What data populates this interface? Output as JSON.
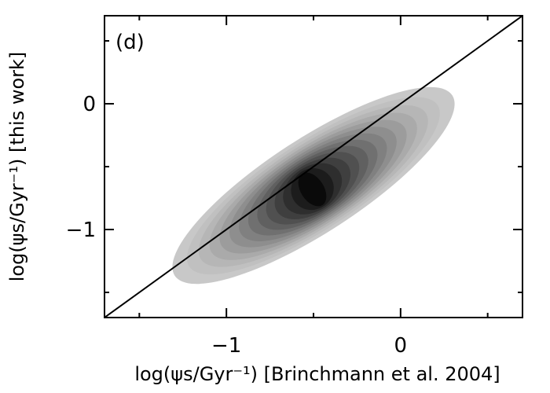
{
  "chart_data": {
    "type": "heatmap",
    "panel_label": "(d)",
    "xlabel": "log(ψs/Gyr⁻¹) [Brinchmann et al. 2004]",
    "ylabel": "log(ψs/Gyr⁻¹) [this work]",
    "xlim": [
      -1.7,
      0.7
    ],
    "ylim": [
      -1.7,
      0.7
    ],
    "x_ticks": [
      -1,
      0
    ],
    "x_tick_labels": [
      "−1",
      "0"
    ],
    "y_ticks": [
      -1,
      0
    ],
    "y_tick_labels": [
      "−1",
      "0"
    ],
    "reference_line": {
      "slope": 1,
      "intercept": 0
    },
    "density": {
      "center": [
        -0.5,
        -0.65
      ],
      "major_axis_angle_deg": 33,
      "semi_major": 0.95,
      "semi_minor": 0.27,
      "peak_gray": "#0a0a0a",
      "outer_gray": "#c8c8c8",
      "levels": 14
    },
    "grid": false,
    "legend": "none"
  }
}
